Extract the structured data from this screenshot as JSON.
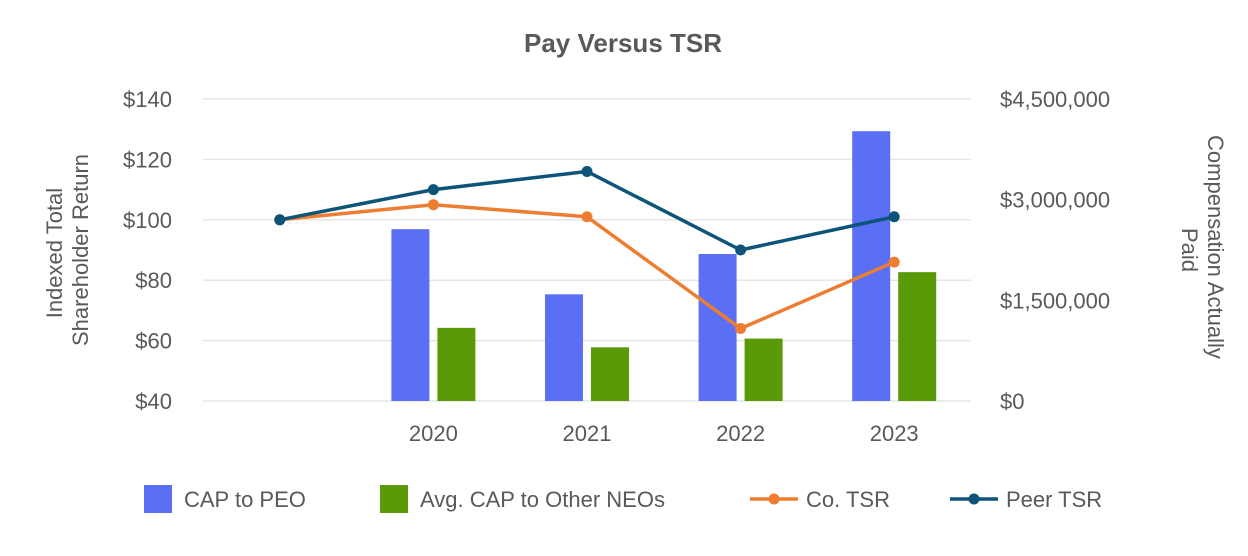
{
  "chart_data": {
    "type": "bar",
    "title": "Pay Versus TSR",
    "categories": [
      "",
      "2020",
      "2021",
      "2022",
      "2023"
    ],
    "y_left": {
      "label_lines": [
        "Indexed Total",
        "Shareholder Return"
      ],
      "lim": [
        40,
        140
      ],
      "ticks": [
        40,
        60,
        80,
        100,
        120,
        140
      ],
      "tick_labels": [
        "$40",
        "$60",
        "$80",
        "$100",
        "$120",
        "$140"
      ]
    },
    "y_right": {
      "label_lines": [
        "Compensation Actually",
        "Paid"
      ],
      "lim": [
        0,
        4500000
      ],
      "ticks": [
        0,
        1500000,
        3000000,
        4500000
      ],
      "tick_labels": [
        "$0",
        "$1,500,000",
        "$3,000,000",
        "$4,500,000"
      ]
    },
    "grid": true,
    "legend_position": "bottom",
    "series": [
      {
        "name": "CAP to PEO",
        "type": "bar",
        "axis": "right",
        "color": "#5b6ff5",
        "values": [
          null,
          2560000,
          1590000,
          2190000,
          4020000
        ]
      },
      {
        "name": "Avg. CAP to Other NEOs",
        "type": "bar",
        "axis": "right",
        "color": "#5a9a08",
        "values": [
          null,
          1090000,
          800000,
          930000,
          1920000
        ]
      },
      {
        "name": "Co. TSR",
        "type": "line",
        "axis": "left",
        "color": "#ed7d31",
        "values": [
          100,
          105,
          101,
          64,
          86
        ]
      },
      {
        "name": "Peer TSR",
        "type": "line",
        "axis": "left",
        "color": "#0e5478",
        "values": [
          100,
          110,
          116,
          90,
          101
        ]
      }
    ]
  }
}
